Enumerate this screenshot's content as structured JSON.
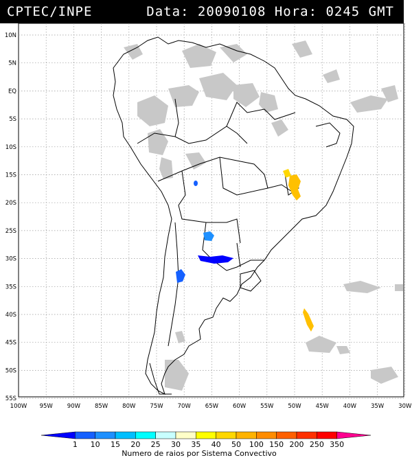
{
  "header": {
    "source": "CPTEC/INPE",
    "datetime": "Data: 20090108 Hora: 0245 GMT"
  },
  "map": {
    "lat_labels": [
      "10N",
      "5N",
      "EQ",
      "5S",
      "10S",
      "15S",
      "20S",
      "25S",
      "30S",
      "35S",
      "40S",
      "45S",
      "50S",
      "55S"
    ],
    "lon_labels": [
      "100W",
      "95W",
      "90W",
      "85W",
      "80W",
      "75W",
      "70W",
      "65W",
      "60W",
      "55W",
      "50W",
      "45W",
      "40W",
      "35W",
      "30W"
    ],
    "extent": {
      "lon": [
        -100,
        -28
      ],
      "lat": [
        -56,
        12
      ]
    },
    "grid": "dotted"
  },
  "colorbar": {
    "labels": [
      "1",
      "10",
      "15",
      "20",
      "25",
      "30",
      "35",
      "40",
      "50",
      "100",
      "150",
      "200",
      "250",
      "350"
    ],
    "colors": [
      "#0000ff",
      "#1560ff",
      "#1e90ff",
      "#00bfff",
      "#00ffff",
      "#c8ffff",
      "#ffffc8",
      "#ffff00",
      "#ffd700",
      "#ffb300",
      "#ff8c00",
      "#ff6000",
      "#ff3000",
      "#ff0000",
      "#ff0090"
    ],
    "title": "Numero de raios por Sistema Convectivo"
  },
  "clusters": [
    {
      "lon": -46.3,
      "lat": -16.8,
      "category": "100"
    },
    {
      "lon": -47.0,
      "lat": -15.5,
      "category": "50"
    },
    {
      "lon": -64.4,
      "lat": -16.7,
      "category": "10"
    },
    {
      "lon": -62.8,
      "lat": -26.2,
      "category": "10"
    },
    {
      "lon": -61.5,
      "lat": -30.0,
      "category": "1"
    },
    {
      "lon": -69.5,
      "lat": -33.8,
      "category": "1"
    },
    {
      "lon": -43.8,
      "lat": -41.3,
      "category": "50"
    }
  ]
}
